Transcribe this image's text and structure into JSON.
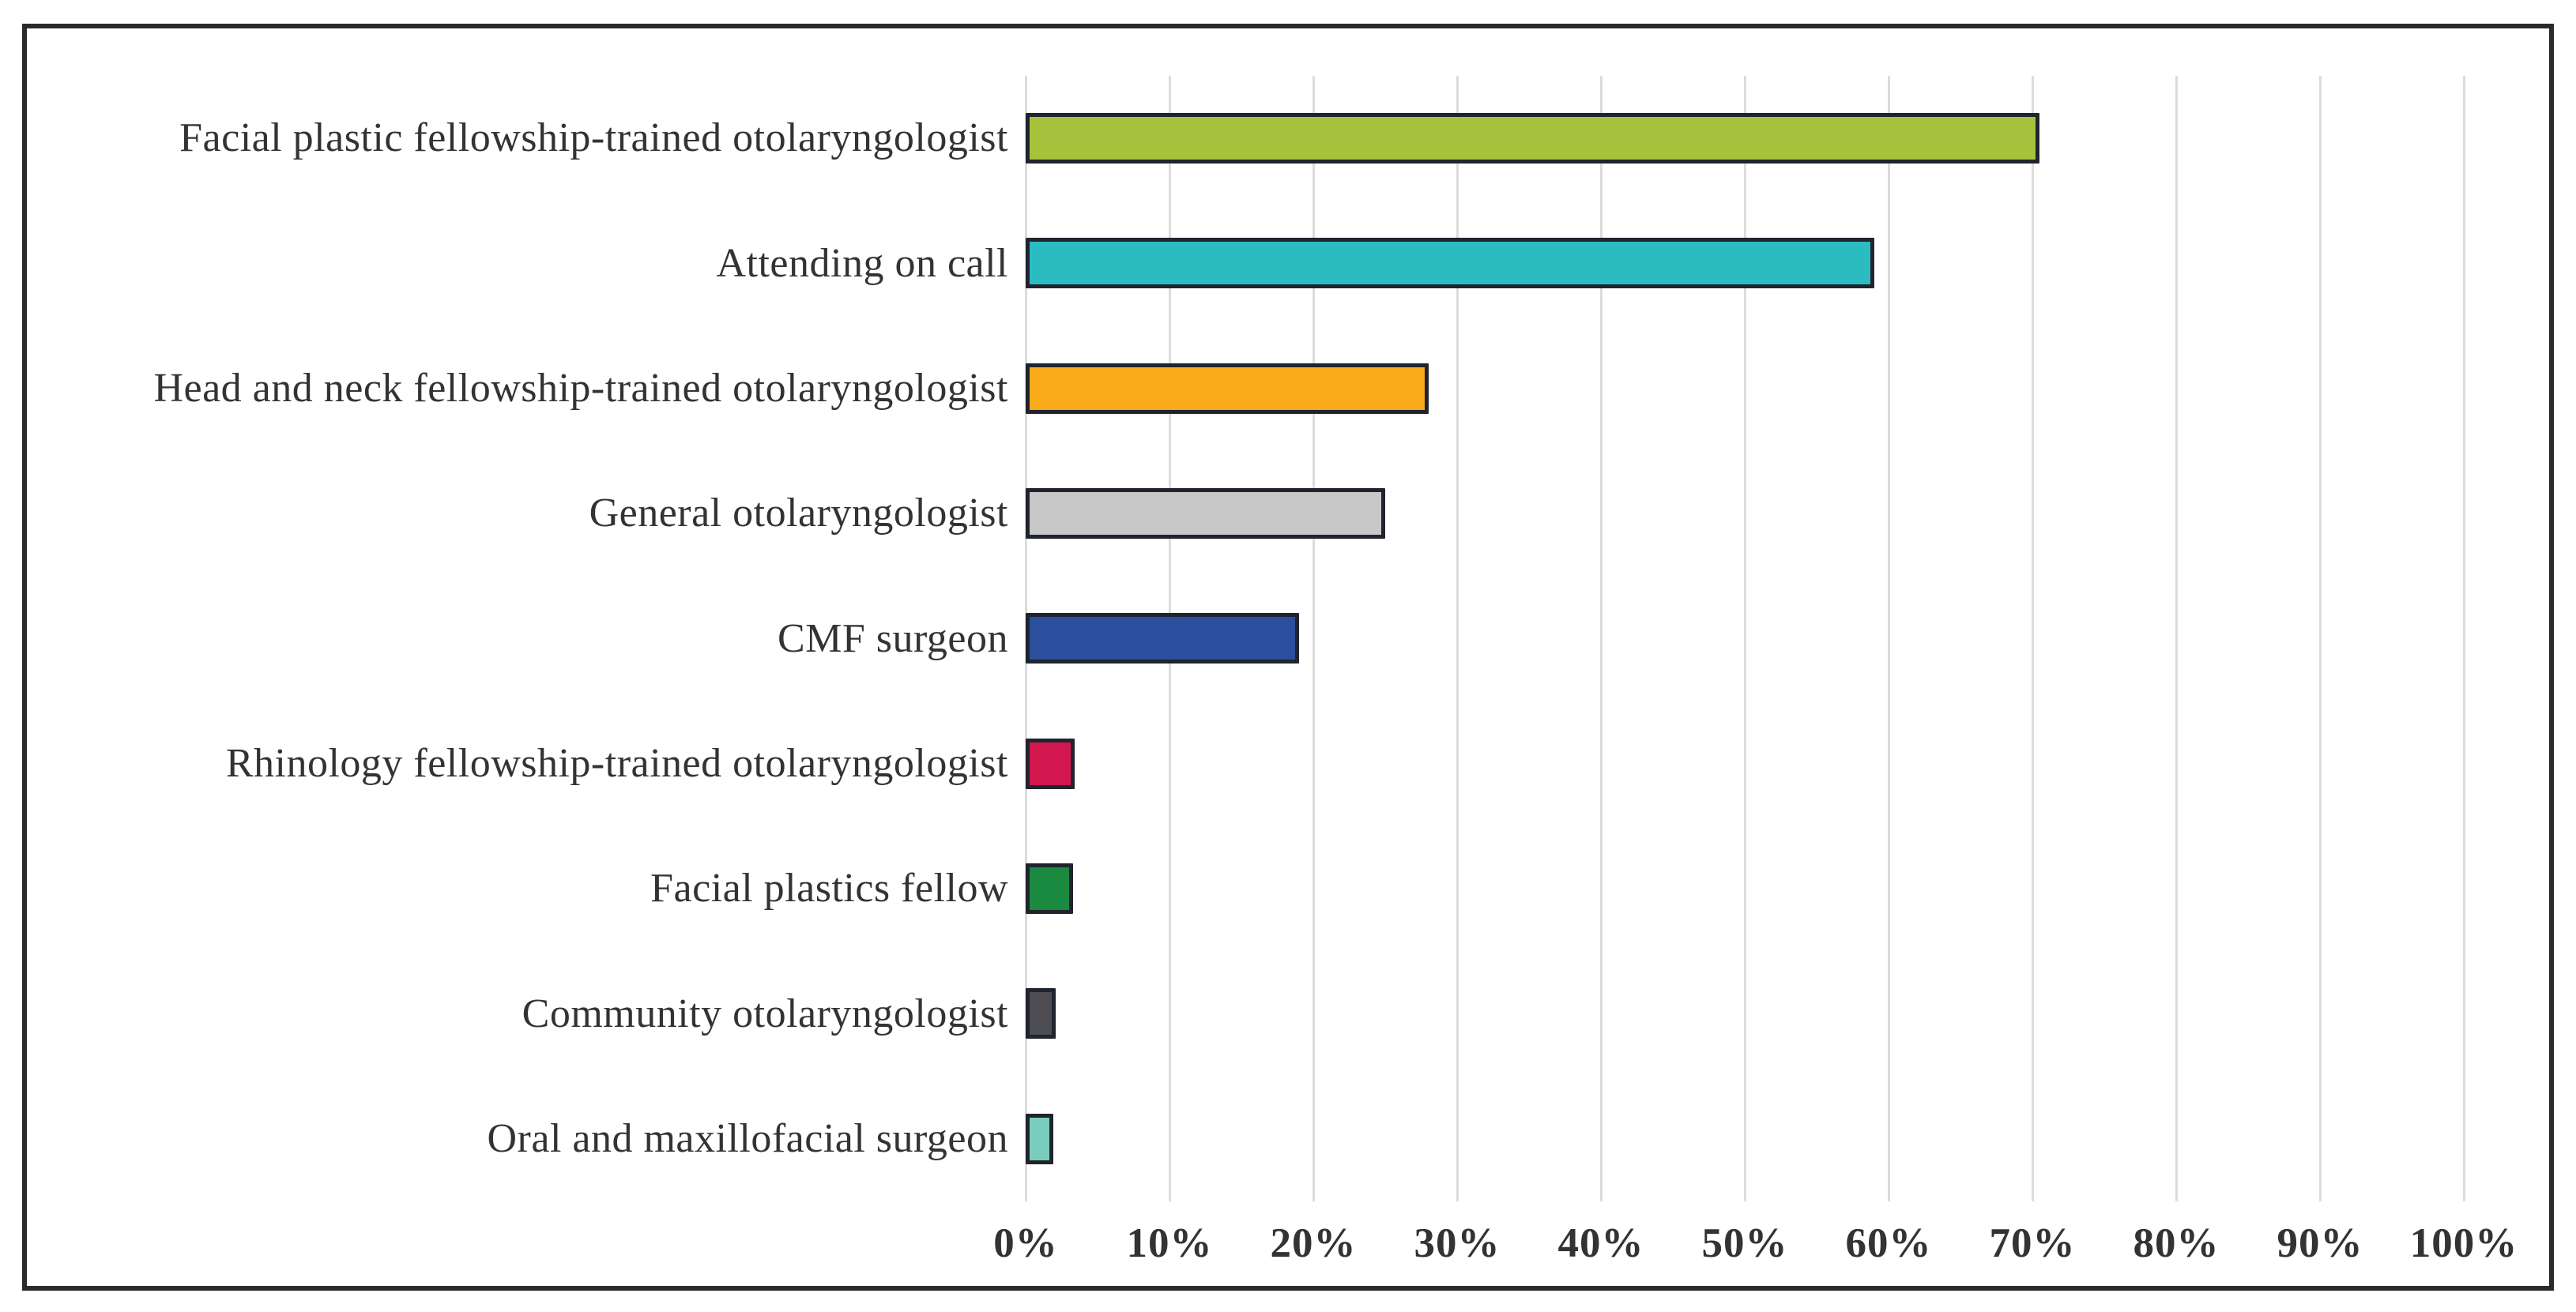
{
  "chart_data": {
    "type": "bar",
    "orientation": "horizontal",
    "title": "",
    "xlabel": "",
    "ylabel": "",
    "unit": "%",
    "categories": [
      "Facial plastic fellowship-trained otolaryngologist",
      "Attending on call",
      "Head and neck fellowship-trained otolaryngologist",
      "General otolaryngologist",
      "CMF surgeon",
      "Rhinology fellowship-trained otolaryngologist",
      "Facial plastics fellow",
      "Community otolaryngologist",
      "Oral and maxillofacial surgeon"
    ],
    "values": [
      70.5,
      59,
      28,
      25,
      19,
      3.4,
      3.3,
      2.1,
      1.9
    ],
    "bar_colors": [
      "#a6c13c",
      "#2bbcc2",
      "#f9ab1b",
      "#c7c7c7",
      "#2c4f9d",
      "#d2164e",
      "#1a8a40",
      "#4d4d52",
      "#79cdbc"
    ],
    "bar_border_color": "#20242e",
    "xlim": [
      0,
      100
    ],
    "x_ticks": [
      "0%",
      "10%",
      "20%",
      "30%",
      "40%",
      "50%",
      "60%",
      "70%",
      "80%",
      "90%",
      "100%"
    ],
    "grid": "vertical",
    "gridline_color": "#dcdcdc",
    "legend_position": "none",
    "frame_border_color": "#2b2b2b",
    "background_color": "#ffffff",
    "text_color": "#333333"
  }
}
